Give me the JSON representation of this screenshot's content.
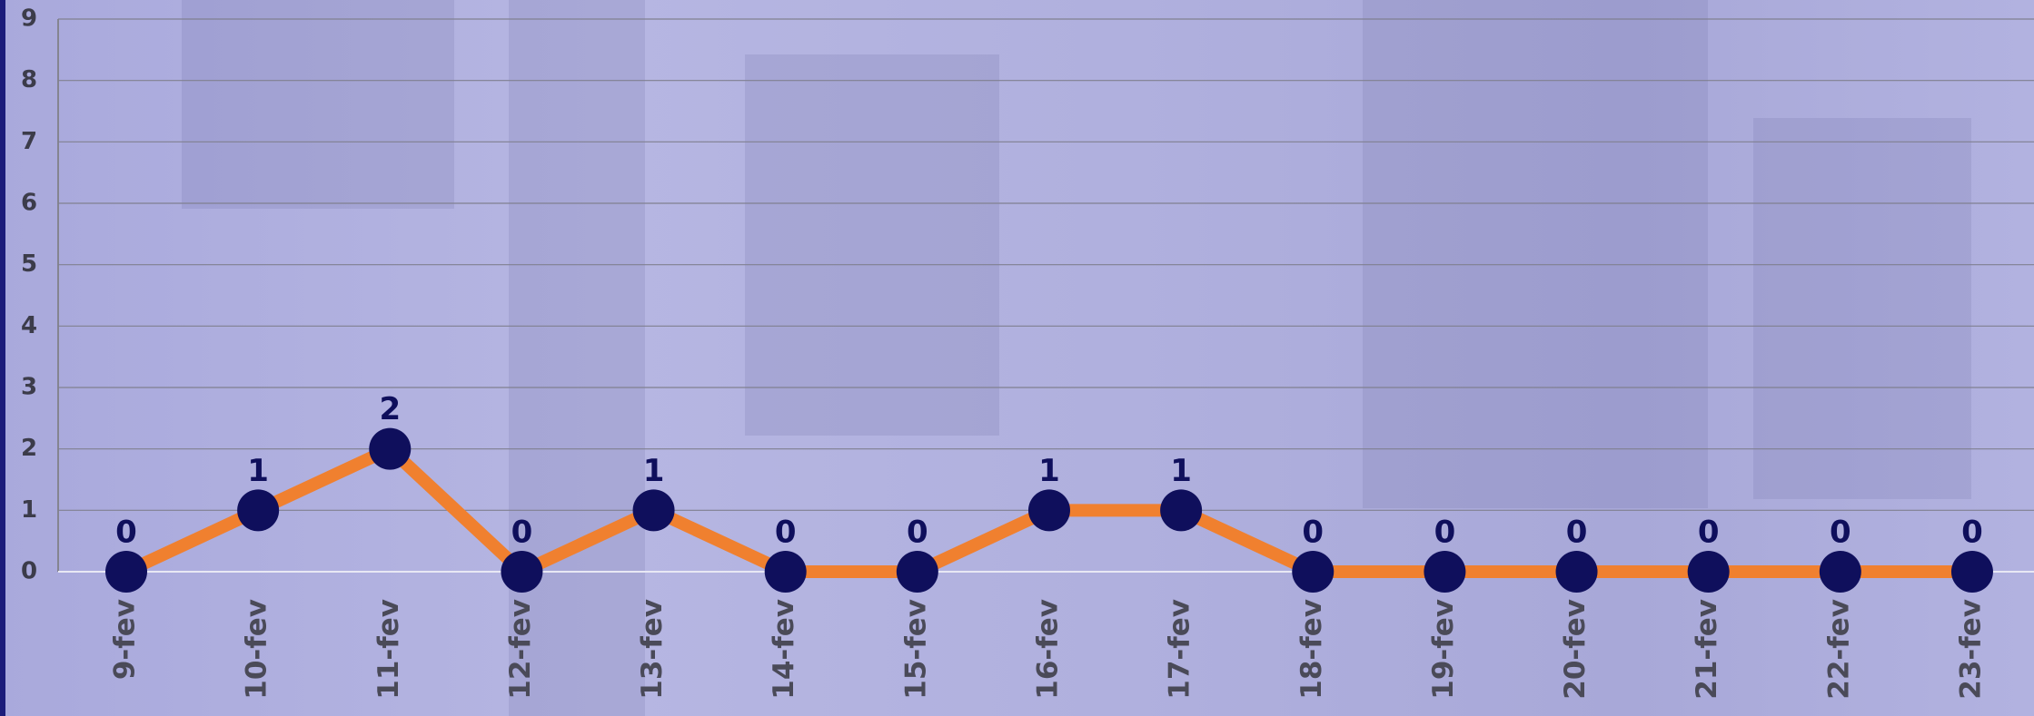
{
  "chart_data": {
    "type": "line",
    "categories": [
      "9-fev",
      "10-fev",
      "11-fev",
      "12-fev",
      "13-fev",
      "14-fev",
      "15-fev",
      "16-fev",
      "17-fev",
      "18-fev",
      "19-fev",
      "20-fev",
      "21-fev",
      "22-fev",
      "23-fev"
    ],
    "values": [
      0,
      1,
      2,
      0,
      1,
      0,
      0,
      1,
      1,
      0,
      0,
      0,
      0,
      0,
      0
    ],
    "color": "#f0802f",
    "marker_color": "#0f0f5c",
    "ylim": [
      0,
      9
    ],
    "yticks": [
      0,
      1,
      2,
      3,
      4,
      5,
      6,
      7,
      8,
      9
    ],
    "grid": true
  }
}
